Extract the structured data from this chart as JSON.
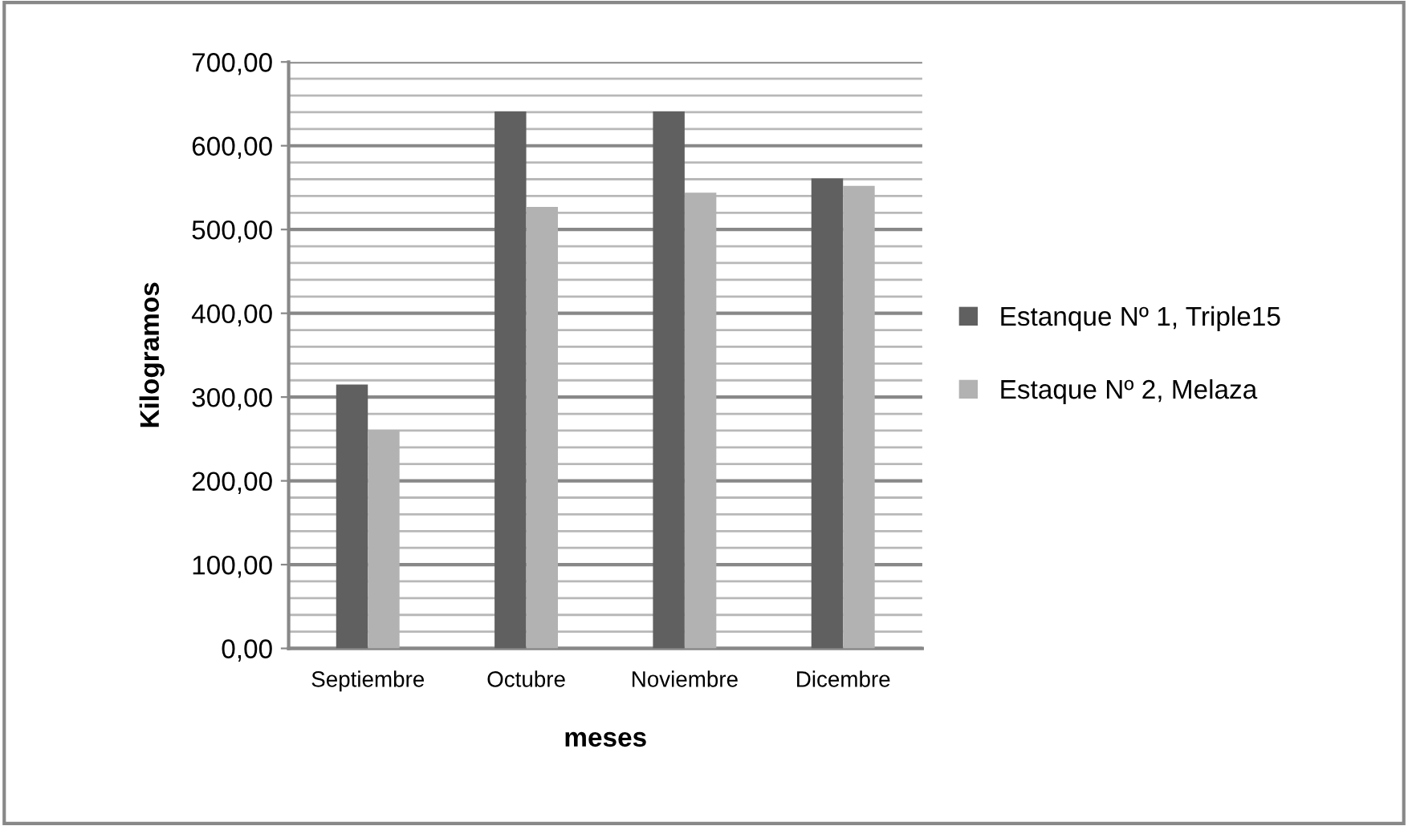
{
  "chart_data": {
    "type": "bar",
    "xlabel": "meses",
    "ylabel": "Kilogramos",
    "categories": [
      "Septiembre",
      "Octubre",
      "Noviembre",
      "Dicembre"
    ],
    "series": [
      {
        "name": "Estanque Nº 1, Triple15",
        "color": "#606060",
        "values": [
          315,
          641,
          641,
          561
        ]
      },
      {
        "name": "Estaque Nº 2, Melaza",
        "color": "#b2b2b2",
        "values": [
          261,
          527,
          544,
          552
        ]
      }
    ],
    "ylim": [
      0,
      700
    ],
    "yticks": [
      {
        "value": 0,
        "label": "0,00"
      },
      {
        "value": 100,
        "label": "100,00"
      },
      {
        "value": 200,
        "label": "200,00"
      },
      {
        "value": 300,
        "label": "300,00"
      },
      {
        "value": 400,
        "label": "400,00"
      },
      {
        "value": 500,
        "label": "500,00"
      },
      {
        "value": 600,
        "label": "600,00"
      },
      {
        "value": 700,
        "label": "700,00"
      }
    ],
    "grid": "y",
    "legend": "right"
  }
}
